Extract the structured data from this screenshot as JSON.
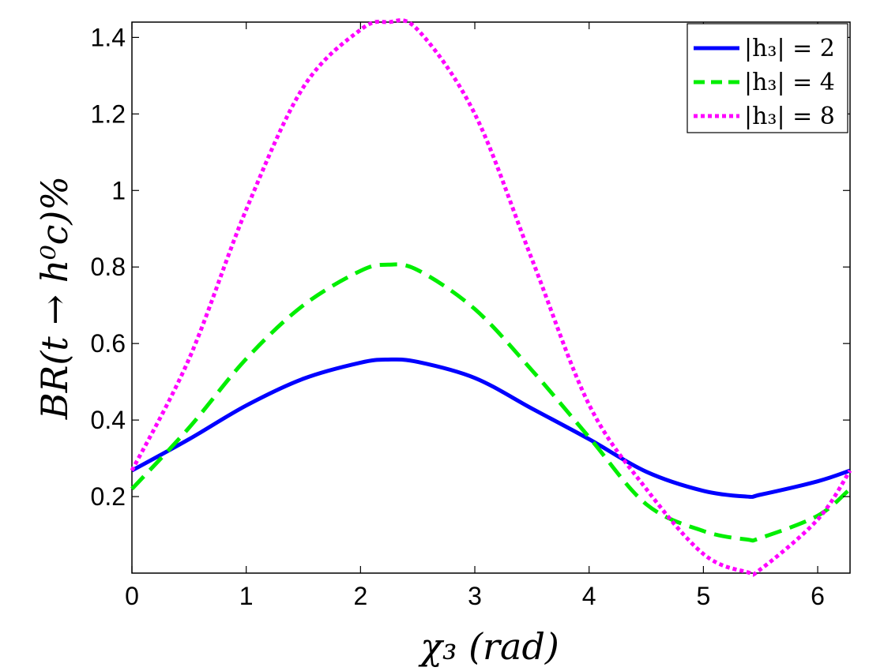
{
  "chart_data": {
    "type": "line",
    "title": "",
    "xlabel": "χ₃ (rad)",
    "ylabel": "BR(t → h⁰c)%",
    "xlim": [
      0,
      6.283
    ],
    "ylim": [
      0,
      1.44
    ],
    "xticks": [
      0,
      1,
      2,
      3,
      4,
      5,
      6
    ],
    "xtick_labels": [
      "0",
      "1",
      "2",
      "3",
      "4",
      "5",
      "6"
    ],
    "yticks": [
      0.2,
      0.4,
      0.6,
      0.8,
      1.0,
      1.2,
      1.4
    ],
    "ytick_labels": [
      "0.2",
      "0.4",
      "0.6",
      "0.8",
      "1",
      "1.2",
      "1.4"
    ],
    "grid": false,
    "legend_position": "top-right",
    "series": [
      {
        "name": "|h₃| = 2",
        "color": "#0000ff",
        "style": "solid",
        "x": [
          0,
          0.5,
          1.0,
          1.5,
          2.0,
          2.24,
          2.5,
          3.0,
          3.5,
          4.0,
          4.5,
          5.0,
          5.38,
          5.5,
          6.0,
          6.283
        ],
        "y": [
          0.268,
          0.35,
          0.438,
          0.508,
          0.55,
          0.558,
          0.552,
          0.51,
          0.43,
          0.35,
          0.265,
          0.215,
          0.2,
          0.205,
          0.24,
          0.268
        ]
      },
      {
        "name": "|h₃| = 4",
        "color": "#00ee00",
        "style": "dashed",
        "x": [
          0,
          0.5,
          1.0,
          1.5,
          2.0,
          2.24,
          2.5,
          3.0,
          3.5,
          4.0,
          4.5,
          5.0,
          5.38,
          5.5,
          6.0,
          6.283
        ],
        "y": [
          0.22,
          0.38,
          0.56,
          0.7,
          0.79,
          0.806,
          0.792,
          0.69,
          0.53,
          0.355,
          0.18,
          0.11,
          0.088,
          0.092,
          0.15,
          0.22
        ]
      },
      {
        "name": "|h₃| = 8",
        "color": "#ff00ff",
        "style": "dotted",
        "x": [
          0,
          0.5,
          1.0,
          1.5,
          2.0,
          2.24,
          2.5,
          3.0,
          3.5,
          4.0,
          4.5,
          5.0,
          5.38,
          5.5,
          6.0,
          6.283
        ],
        "y": [
          0.268,
          0.56,
          0.95,
          1.27,
          1.42,
          1.44,
          1.42,
          1.2,
          0.82,
          0.44,
          0.22,
          0.05,
          0.003,
          0.01,
          0.14,
          0.268
        ]
      }
    ]
  }
}
